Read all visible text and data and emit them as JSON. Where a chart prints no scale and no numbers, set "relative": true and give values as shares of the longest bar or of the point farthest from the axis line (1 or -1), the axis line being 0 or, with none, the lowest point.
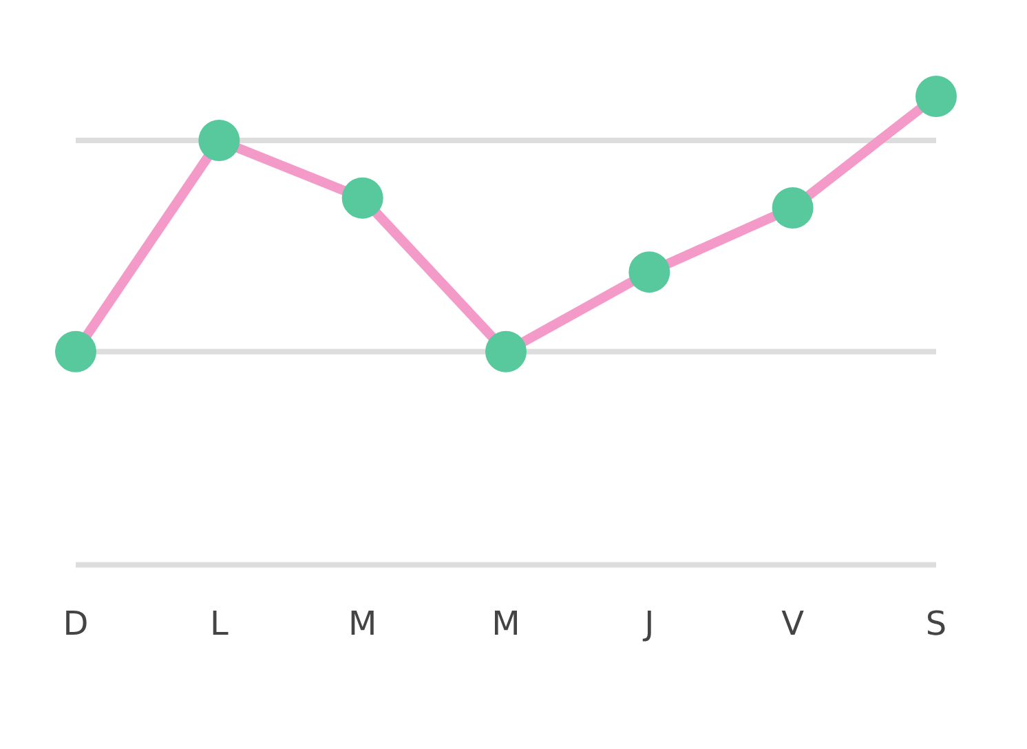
{
  "chart_data": {
    "type": "line",
    "relative": true,
    "categories": [
      "D",
      "L",
      "M",
      "M",
      "J",
      "V",
      "S"
    ],
    "series": [
      {
        "color": "#f49ac9",
        "colors": [
          "#57c99d",
          "#57c99d",
          "#57c99d",
          "#57c99d",
          "#57c99d",
          "#57c99d",
          "#57c99d"
        ],
        "values": [
          0.455,
          0.906,
          0.783,
          0.455,
          0.625,
          0.762,
          1
        ]
      }
    ],
    "ref_lines": [
      {
        "axis": "y",
        "value": 0,
        "color": "#dddddd"
      },
      {
        "axis": "y",
        "value": 0.455,
        "color": "#dddddd"
      },
      {
        "axis": "y",
        "value": 0.906,
        "color": "#dddddd"
      }
    ],
    "marker": "circle",
    "legend": false
  }
}
